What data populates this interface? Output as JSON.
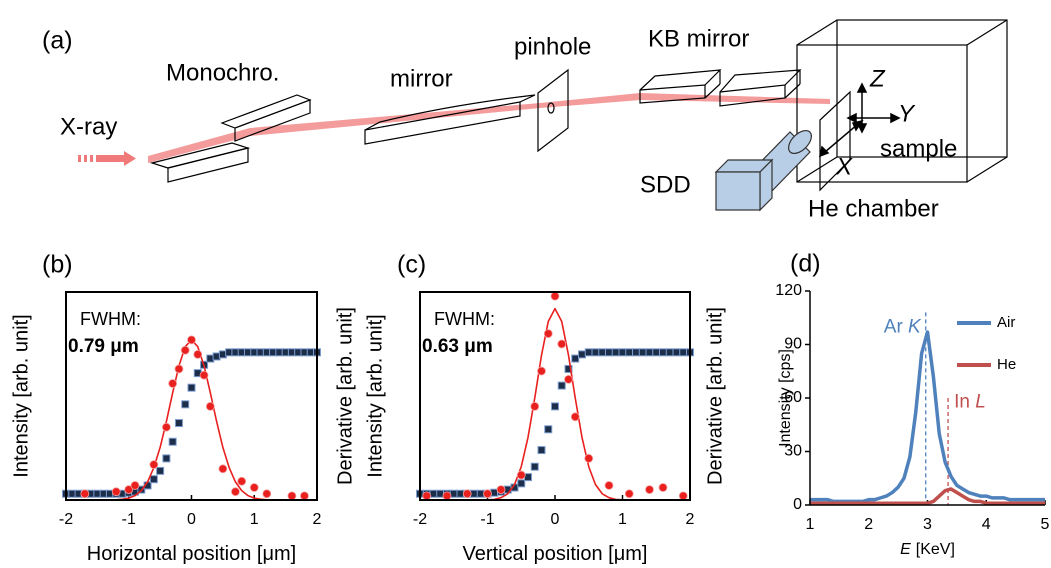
{
  "diagram": {
    "panel": "(a)",
    "labels": {
      "xray": "X-ray",
      "monochro": "Monochro.",
      "mirror": "mirror",
      "pinhole": "pinhole",
      "kb": "KB mirror",
      "z": "Z",
      "y": "Y",
      "x": "X",
      "sample": "sample",
      "sdd": "SDD",
      "chamber": "He chamber"
    }
  },
  "chart_data": [
    {
      "type": "line",
      "panel": "(b)",
      "x_label": "Horizontal position [μm]",
      "y_label": "Intensity [arb. unit]",
      "y2_label": "Derivative [arb. unit]",
      "fwhm_label": "FWHM:",
      "fwhm_value": "0.79 μm",
      "xlim": [
        -2,
        2
      ],
      "xticks": [
        -2,
        -1,
        0,
        1,
        2
      ],
      "ylim": [
        0,
        1
      ],
      "y2lim": [
        0,
        1
      ],
      "x": [
        -2,
        -1.9,
        -1.8,
        -1.7,
        -1.6,
        -1.5,
        -1.4,
        -1.3,
        -1.2,
        -1.1,
        -1,
        -0.9,
        -0.8,
        -0.7,
        -0.6,
        -0.5,
        -0.4,
        -0.3,
        -0.2,
        -0.1,
        0,
        0.1,
        0.2,
        0.3,
        0.4,
        0.5,
        0.6,
        0.7,
        0.8,
        0.9,
        1,
        1.1,
        1.2,
        1.3,
        1.4,
        1.5,
        1.6,
        1.7,
        1.8,
        1.9,
        2
      ],
      "series": [
        {
          "mode": "markers",
          "marker": "square",
          "color": "#1c2e4a",
          "values": [
            0.03,
            0.03,
            0.03,
            0.03,
            0.03,
            0.03,
            0.03,
            0.03,
            0.03,
            0.03,
            0.035,
            0.04,
            0.05,
            0.07,
            0.1,
            0.14,
            0.2,
            0.28,
            0.37,
            0.46,
            0.54,
            0.61,
            0.65,
            0.68,
            0.69,
            0.7,
            0.71,
            0.71,
            0.71,
            0.71,
            0.71,
            0.71,
            0.71,
            0.71,
            0.71,
            0.71,
            0.71,
            0.71,
            0.71,
            0.71,
            0.71
          ]
        },
        {
          "mode": "line",
          "axis": "y2",
          "color": "#e8201e",
          "values": [
            0,
            0,
            0,
            0,
            0,
            0,
            0,
            0,
            0.001,
            0.004,
            0.009,
            0.021,
            0.045,
            0.087,
            0.156,
            0.253,
            0.378,
            0.516,
            0.645,
            0.737,
            0.77,
            0.737,
            0.645,
            0.516,
            0.378,
            0.253,
            0.156,
            0.087,
            0.045,
            0.021,
            0.009,
            0.004,
            0.001,
            0,
            0,
            0,
            0,
            0,
            0,
            0,
            0
          ]
        },
        {
          "mode": "markers",
          "marker": "circle",
          "axis": "y2",
          "color": "#e8201e",
          "x": [
            -1.7,
            -1.2,
            -1,
            -0.9,
            -0.6,
            -0.4,
            -0.3,
            -0.2,
            -0.1,
            0,
            0.1,
            0.2,
            0.3,
            0.5,
            0.7,
            0.8,
            1,
            1.2,
            1.6,
            1.8
          ],
          "values": [
            0.03,
            0.04,
            0.05,
            0.07,
            0.17,
            0.35,
            0.56,
            0.63,
            0.72,
            0.77,
            0.7,
            0.6,
            0.45,
            0.15,
            0.04,
            0.09,
            0.06,
            0.03,
            0.02,
            0.02
          ]
        }
      ]
    },
    {
      "type": "line",
      "panel": "(c)",
      "x_label": "Vertical position [μm]",
      "y_label": "Intensity [arb. unit]",
      "y2_label": "Derivative [arb. unit]",
      "fwhm_label": "FWHM:",
      "fwhm_value": "0.63 μm",
      "xlim": [
        -2,
        2
      ],
      "xticks": [
        -2,
        -1,
        0,
        1,
        2
      ],
      "ylim": [
        0,
        1
      ],
      "y2lim": [
        0,
        1
      ],
      "x": [
        -2,
        -1.9,
        -1.8,
        -1.7,
        -1.6,
        -1.5,
        -1.4,
        -1.3,
        -1.2,
        -1.1,
        -1,
        -0.9,
        -0.8,
        -0.7,
        -0.6,
        -0.5,
        -0.4,
        -0.3,
        -0.2,
        -0.1,
        0,
        0.1,
        0.2,
        0.3,
        0.4,
        0.5,
        0.6,
        0.7,
        0.8,
        0.9,
        1,
        1.1,
        1.2,
        1.3,
        1.4,
        1.5,
        1.6,
        1.7,
        1.8,
        1.9,
        2
      ],
      "series": [
        {
          "mode": "markers",
          "marker": "square",
          "color": "#1c2e4a",
          "values": [
            0.03,
            0.03,
            0.03,
            0.03,
            0.03,
            0.03,
            0.03,
            0.03,
            0.03,
            0.03,
            0.03,
            0.035,
            0.04,
            0.05,
            0.06,
            0.08,
            0.11,
            0.16,
            0.24,
            0.34,
            0.45,
            0.55,
            0.63,
            0.68,
            0.7,
            0.71,
            0.71,
            0.71,
            0.71,
            0.71,
            0.71,
            0.71,
            0.71,
            0.71,
            0.71,
            0.71,
            0.71,
            0.71,
            0.71,
            0.71,
            0.71
          ]
        },
        {
          "mode": "line",
          "axis": "y2",
          "color": "#e8201e",
          "values": [
            0,
            0,
            0,
            0,
            0,
            0,
            0,
            0,
            0,
            0,
            0.001,
            0.003,
            0.011,
            0.03,
            0.074,
            0.16,
            0.301,
            0.49,
            0.696,
            0.858,
            0.92,
            0.858,
            0.696,
            0.49,
            0.301,
            0.16,
            0.074,
            0.03,
            0.011,
            0.003,
            0.001,
            0,
            0,
            0,
            0,
            0,
            0,
            0,
            0,
            0,
            0
          ]
        },
        {
          "mode": "markers",
          "marker": "circle",
          "axis": "y2",
          "color": "#e8201e",
          "x": [
            -1.9,
            -1.6,
            -1.3,
            -1,
            -0.8,
            -0.5,
            -0.3,
            -0.2,
            -0.1,
            0,
            0.1,
            0.2,
            0.3,
            0.5,
            0.8,
            1.1,
            1.4,
            1.6,
            1.9
          ],
          "values": [
            0.02,
            0.02,
            0.03,
            0.03,
            0.05,
            0.12,
            0.45,
            0.62,
            0.8,
            0.98,
            0.75,
            0.58,
            0.4,
            0.2,
            0.07,
            0.03,
            0.05,
            0.06,
            0.02
          ]
        }
      ]
    },
    {
      "type": "line",
      "panel": "(d)",
      "x_label_symbol": "E",
      "x_label": "[KeV]",
      "y_label": "Intensity [cps]",
      "xlim": [
        1,
        5
      ],
      "xticks": [
        1,
        2,
        3,
        4,
        5
      ],
      "ylim": [
        0,
        120
      ],
      "yticks": [
        0,
        30,
        60,
        90,
        120
      ],
      "legend": "upper right",
      "x": [
        1,
        1.1,
        1.2,
        1.3,
        1.4,
        1.5,
        1.6,
        1.7,
        1.8,
        1.9,
        2,
        2.1,
        2.2,
        2.3,
        2.4,
        2.5,
        2.6,
        2.7,
        2.8,
        2.9,
        3,
        3.1,
        3.2,
        3.3,
        3.4,
        3.5,
        3.6,
        3.7,
        3.8,
        3.9,
        4,
        4.1,
        4.2,
        4.3,
        4.4,
        4.5,
        4.6,
        4.7,
        4.8,
        4.9,
        5
      ],
      "series": [
        {
          "name": "Air",
          "mode": "line",
          "color": "#4f81bd",
          "values": [
            3,
            3,
            3,
            3,
            2,
            2,
            2,
            2,
            2,
            2,
            3,
            3,
            4,
            5,
            7,
            10,
            15,
            27,
            52,
            85,
            97,
            72,
            40,
            24,
            16,
            11,
            9,
            7,
            6,
            5,
            5,
            4,
            4,
            4,
            3,
            3,
            3,
            3,
            3,
            3,
            3
          ]
        },
        {
          "name": "He",
          "mode": "line",
          "color": "#c0504d",
          "values": [
            1,
            1,
            1,
            1,
            1,
            1,
            1,
            1,
            1,
            1,
            1,
            1,
            1,
            1,
            1,
            1,
            1,
            1,
            1,
            1,
            1,
            2,
            5,
            8,
            9,
            7,
            5,
            3,
            2,
            2,
            1,
            1,
            1,
            1,
            1,
            1,
            1,
            1,
            1,
            1,
            1
          ]
        }
      ],
      "annotations": [
        {
          "x": 2.97,
          "text": "Ar ",
          "symbol": "K",
          "color": "#4f81bd"
        },
        {
          "x": 3.35,
          "text": "In ",
          "symbol": "L",
          "color": "#c0504d"
        }
      ]
    }
  ]
}
